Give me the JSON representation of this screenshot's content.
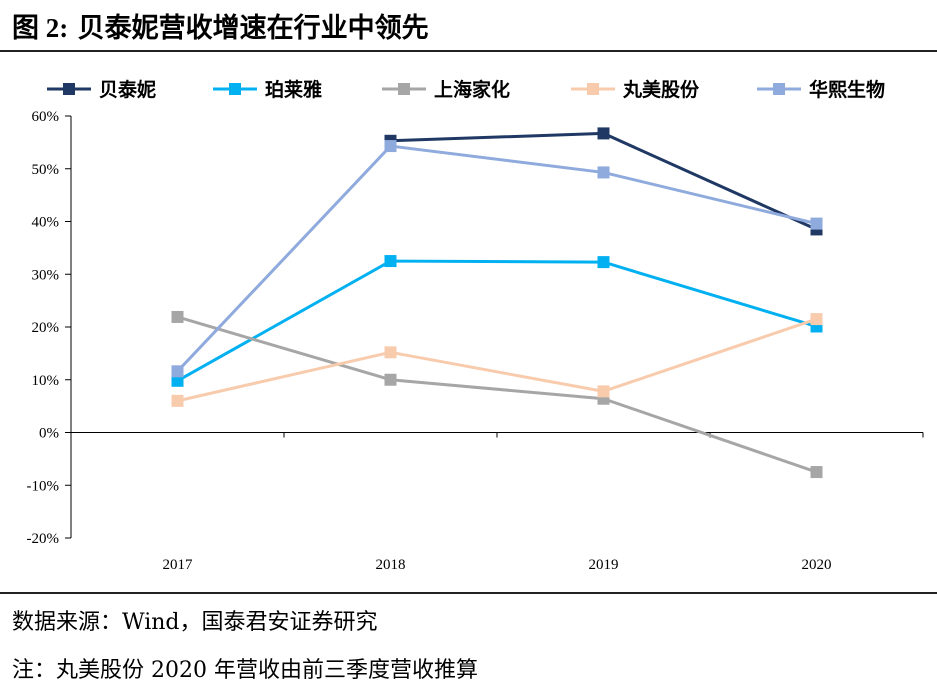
{
  "figure": {
    "label": "图 2:",
    "title": "贝泰妮营收增速在行业中领先",
    "source": "数据来源：Wind，国泰君安证券研究",
    "note": "注：丸美股份 2020 年营收由前三季度营收推算"
  },
  "chart_data": {
    "type": "line",
    "x": [
      "2017",
      "2018",
      "2019",
      "2020"
    ],
    "ylim": [
      -20,
      60
    ],
    "ytick_step": 10,
    "ytick_suffix": "%",
    "grid": false,
    "legend_position": "top",
    "series": [
      {
        "name": "贝泰妮",
        "color": "#1f3864",
        "values": [
          null,
          55.3,
          56.7,
          38.5
        ]
      },
      {
        "name": "珀莱雅",
        "color": "#00b0f0",
        "values": [
          9.8,
          32.5,
          32.3,
          20.1
        ]
      },
      {
        "name": "上海家化",
        "color": "#a6a6a6",
        "values": [
          21.9,
          10.0,
          6.4,
          -7.5
        ]
      },
      {
        "name": "丸美股份",
        "color": "#f8cbad",
        "values": [
          6.0,
          15.2,
          7.8,
          21.5
        ]
      },
      {
        "name": "华熙生物",
        "color": "#8faadc",
        "values": [
          11.6,
          54.3,
          49.3,
          39.6
        ]
      }
    ]
  }
}
